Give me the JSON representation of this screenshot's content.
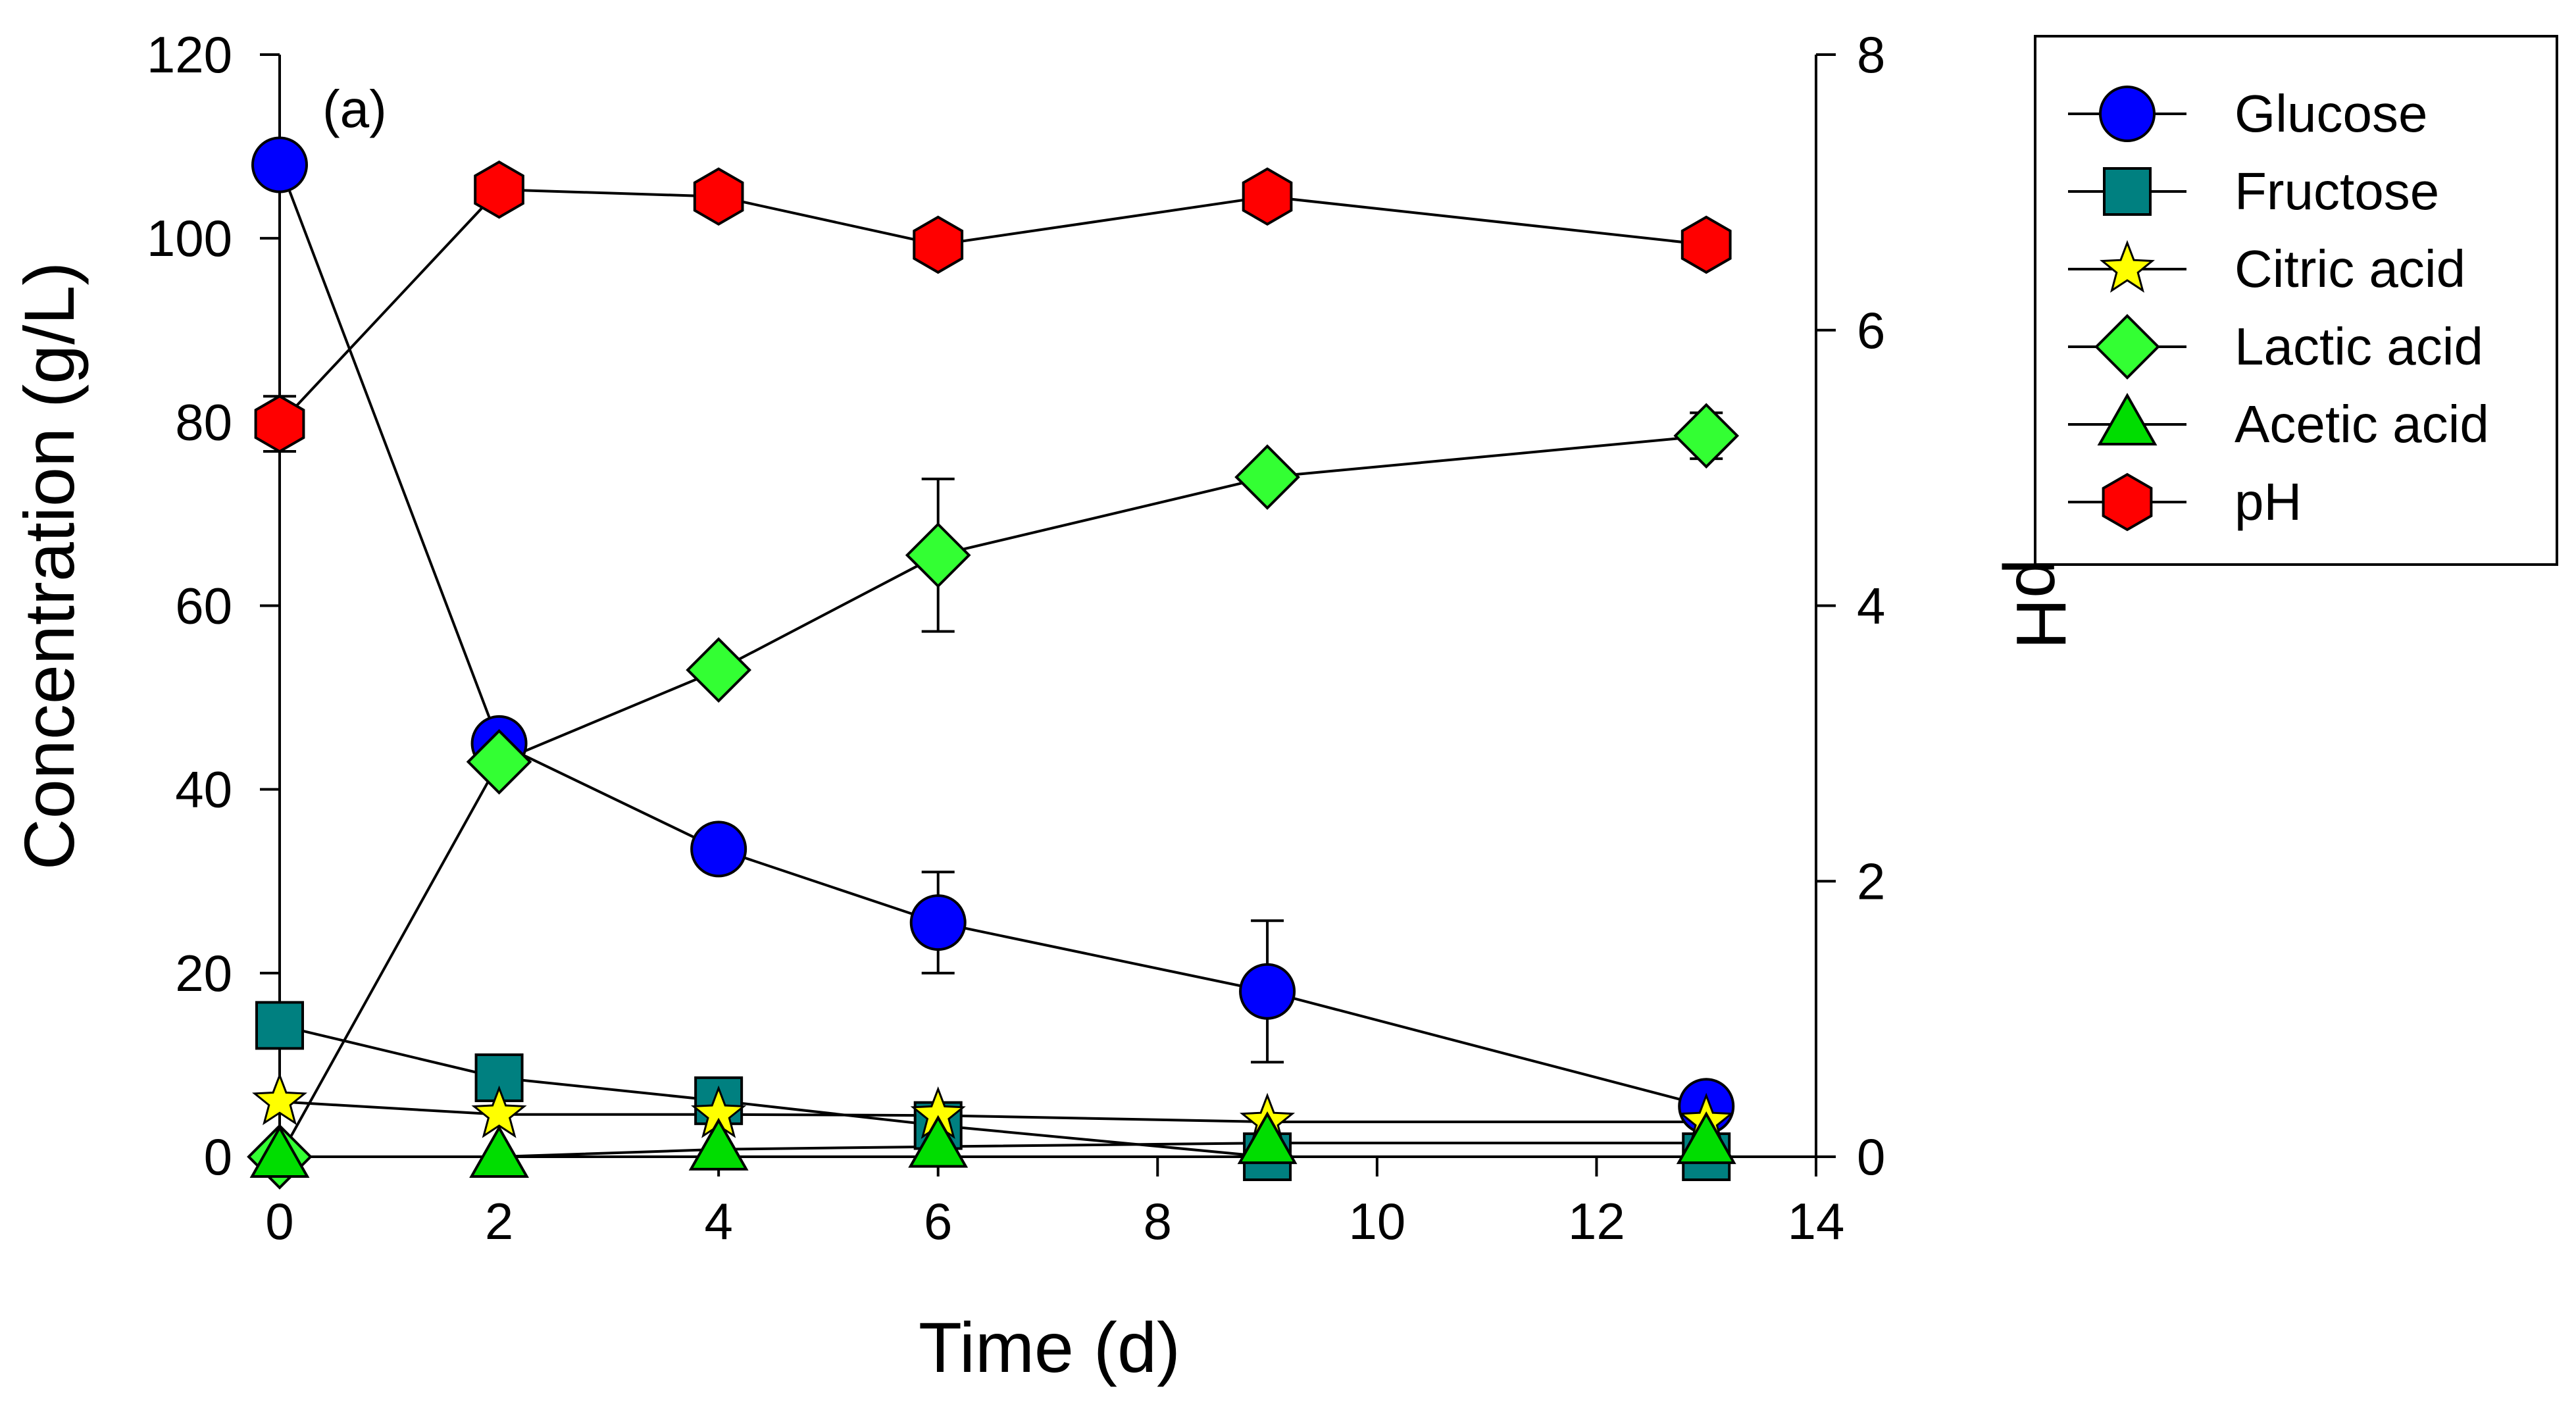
{
  "chart_data": {
    "type": "line",
    "panel_label": "(a)",
    "xlabel": "Time (d)",
    "ylabel": "Concentration (g/L)",
    "y2label": "pH",
    "xlim": [
      0,
      14
    ],
    "ylim": [
      0,
      120
    ],
    "y2lim": [
      0,
      8
    ],
    "xticks": [
      0,
      2,
      4,
      6,
      8,
      10,
      12,
      14
    ],
    "yticks": [
      0,
      20,
      40,
      60,
      80,
      100,
      120
    ],
    "y2ticks": [
      0,
      2,
      4,
      6,
      8
    ],
    "legend_position": "top-right, outside plot",
    "series": [
      {
        "name": "Glucose",
        "axis": "left",
        "marker": "circle",
        "color": "#0000FF",
        "x": [
          0,
          2,
          4,
          6,
          9,
          13
        ],
        "values": [
          108,
          45,
          33.5,
          25.5,
          18,
          5.5
        ],
        "errors": [
          0,
          0,
          0,
          5.5,
          7.7,
          0
        ]
      },
      {
        "name": "Fructose",
        "axis": "left",
        "marker": "square",
        "color": "#008080",
        "x": [
          0,
          2,
          4,
          6,
          9,
          13
        ],
        "values": [
          14.3,
          8.6,
          6.1,
          3.4,
          0,
          0
        ],
        "errors": [
          0,
          0,
          0,
          0,
          0,
          0
        ]
      },
      {
        "name": "Citric acid",
        "axis": "left",
        "marker": "star",
        "color": "#FFFF00",
        "x": [
          0,
          2,
          4,
          6,
          9,
          13
        ],
        "values": [
          6,
          4.6,
          4.6,
          4.5,
          3.8,
          3.8
        ],
        "errors": [
          0,
          0,
          0,
          0,
          0,
          0
        ]
      },
      {
        "name": "Lactic acid",
        "axis": "left",
        "marker": "diamond",
        "color": "#33FF33",
        "x": [
          0,
          2,
          4,
          6,
          9,
          13
        ],
        "values": [
          0,
          43,
          53,
          65.5,
          74,
          78.5
        ],
        "errors": [
          0,
          0,
          0,
          8.3,
          0,
          2.5
        ]
      },
      {
        "name": "Acetic acid",
        "axis": "left",
        "marker": "triangle",
        "color": "#00DD00",
        "x": [
          0,
          2,
          4,
          6,
          9,
          13
        ],
        "values": [
          0,
          0,
          0.8,
          1.1,
          1.5,
          1.5
        ],
        "errors": [
          0,
          0,
          0,
          0,
          0,
          0
        ]
      },
      {
        "name": "pH",
        "axis": "right",
        "marker": "hexagon",
        "color": "#FF0000",
        "x": [
          0,
          2,
          4,
          6,
          9,
          13
        ],
        "values": [
          5.32,
          7.02,
          6.97,
          6.62,
          6.97,
          6.62
        ],
        "errors": [
          0.2,
          0,
          0,
          0,
          0,
          0
        ]
      }
    ]
  }
}
